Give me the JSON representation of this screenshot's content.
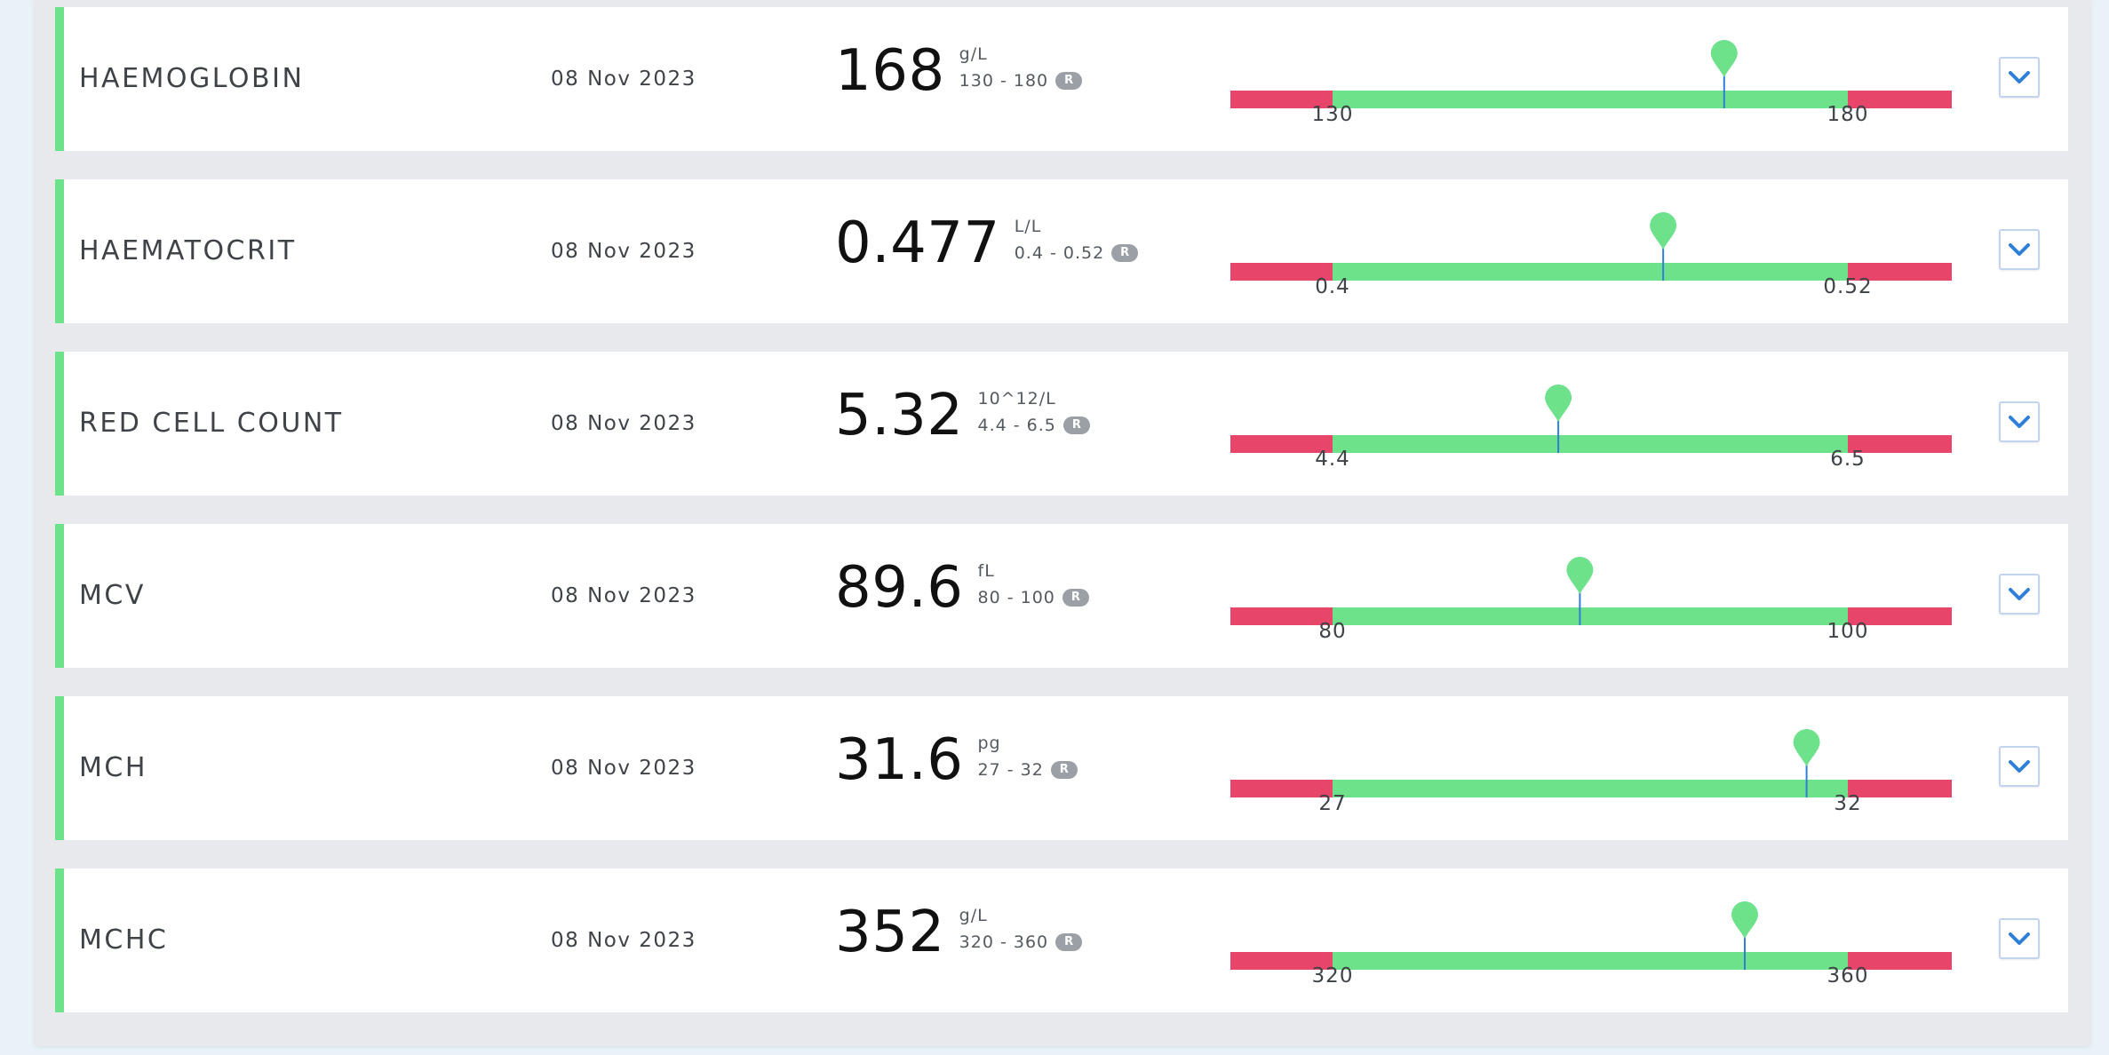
{
  "colors": {
    "accent": "#6ee18b",
    "in_range": "#6ee18b",
    "out_of_range": "#e8456b",
    "marker_line": "#2f7fd8",
    "chevron": "#2f7fd8"
  },
  "tests": [
    {
      "name": "HAEMOGLOBIN",
      "date": "08 Nov 2023",
      "value": "168",
      "unit": "g/L",
      "range": "130 - 180",
      "badge": "R",
      "low_label": "130",
      "high_label": "180",
      "low": 130,
      "high": 180,
      "result": 168
    },
    {
      "name": "HAEMATOCRIT",
      "date": "08 Nov 2023",
      "value": "0.477",
      "unit": "L/L",
      "range": "0.4 - 0.52",
      "badge": "R",
      "low_label": "0.4",
      "high_label": "0.52",
      "low": 0.4,
      "high": 0.52,
      "result": 0.477
    },
    {
      "name": "RED CELL COUNT",
      "date": "08 Nov 2023",
      "value": "5.32",
      "unit": "10^12/L",
      "range": "4.4 - 6.5",
      "badge": "R",
      "low_label": "4.4",
      "high_label": "6.5",
      "low": 4.4,
      "high": 6.5,
      "result": 5.32
    },
    {
      "name": "MCV",
      "date": "08 Nov 2023",
      "value": "89.6",
      "unit": "fL",
      "range": "80 - 100",
      "badge": "R",
      "low_label": "80",
      "high_label": "100",
      "low": 80,
      "high": 100,
      "result": 89.6
    },
    {
      "name": "MCH",
      "date": "08 Nov 2023",
      "value": "31.6",
      "unit": "pg",
      "range": "27 - 32",
      "badge": "R",
      "low_label": "27",
      "high_label": "32",
      "low": 27,
      "high": 32,
      "result": 31.6
    },
    {
      "name": "MCHC",
      "date": "08 Nov 2023",
      "value": "352",
      "unit": "g/L",
      "range": "320 - 360",
      "badge": "R",
      "low_label": "320",
      "high_label": "360",
      "low": 320,
      "high": 360,
      "result": 352
    }
  ],
  "icons": {
    "expand": "chevron-down-icon",
    "marker": "map-pin-icon"
  }
}
